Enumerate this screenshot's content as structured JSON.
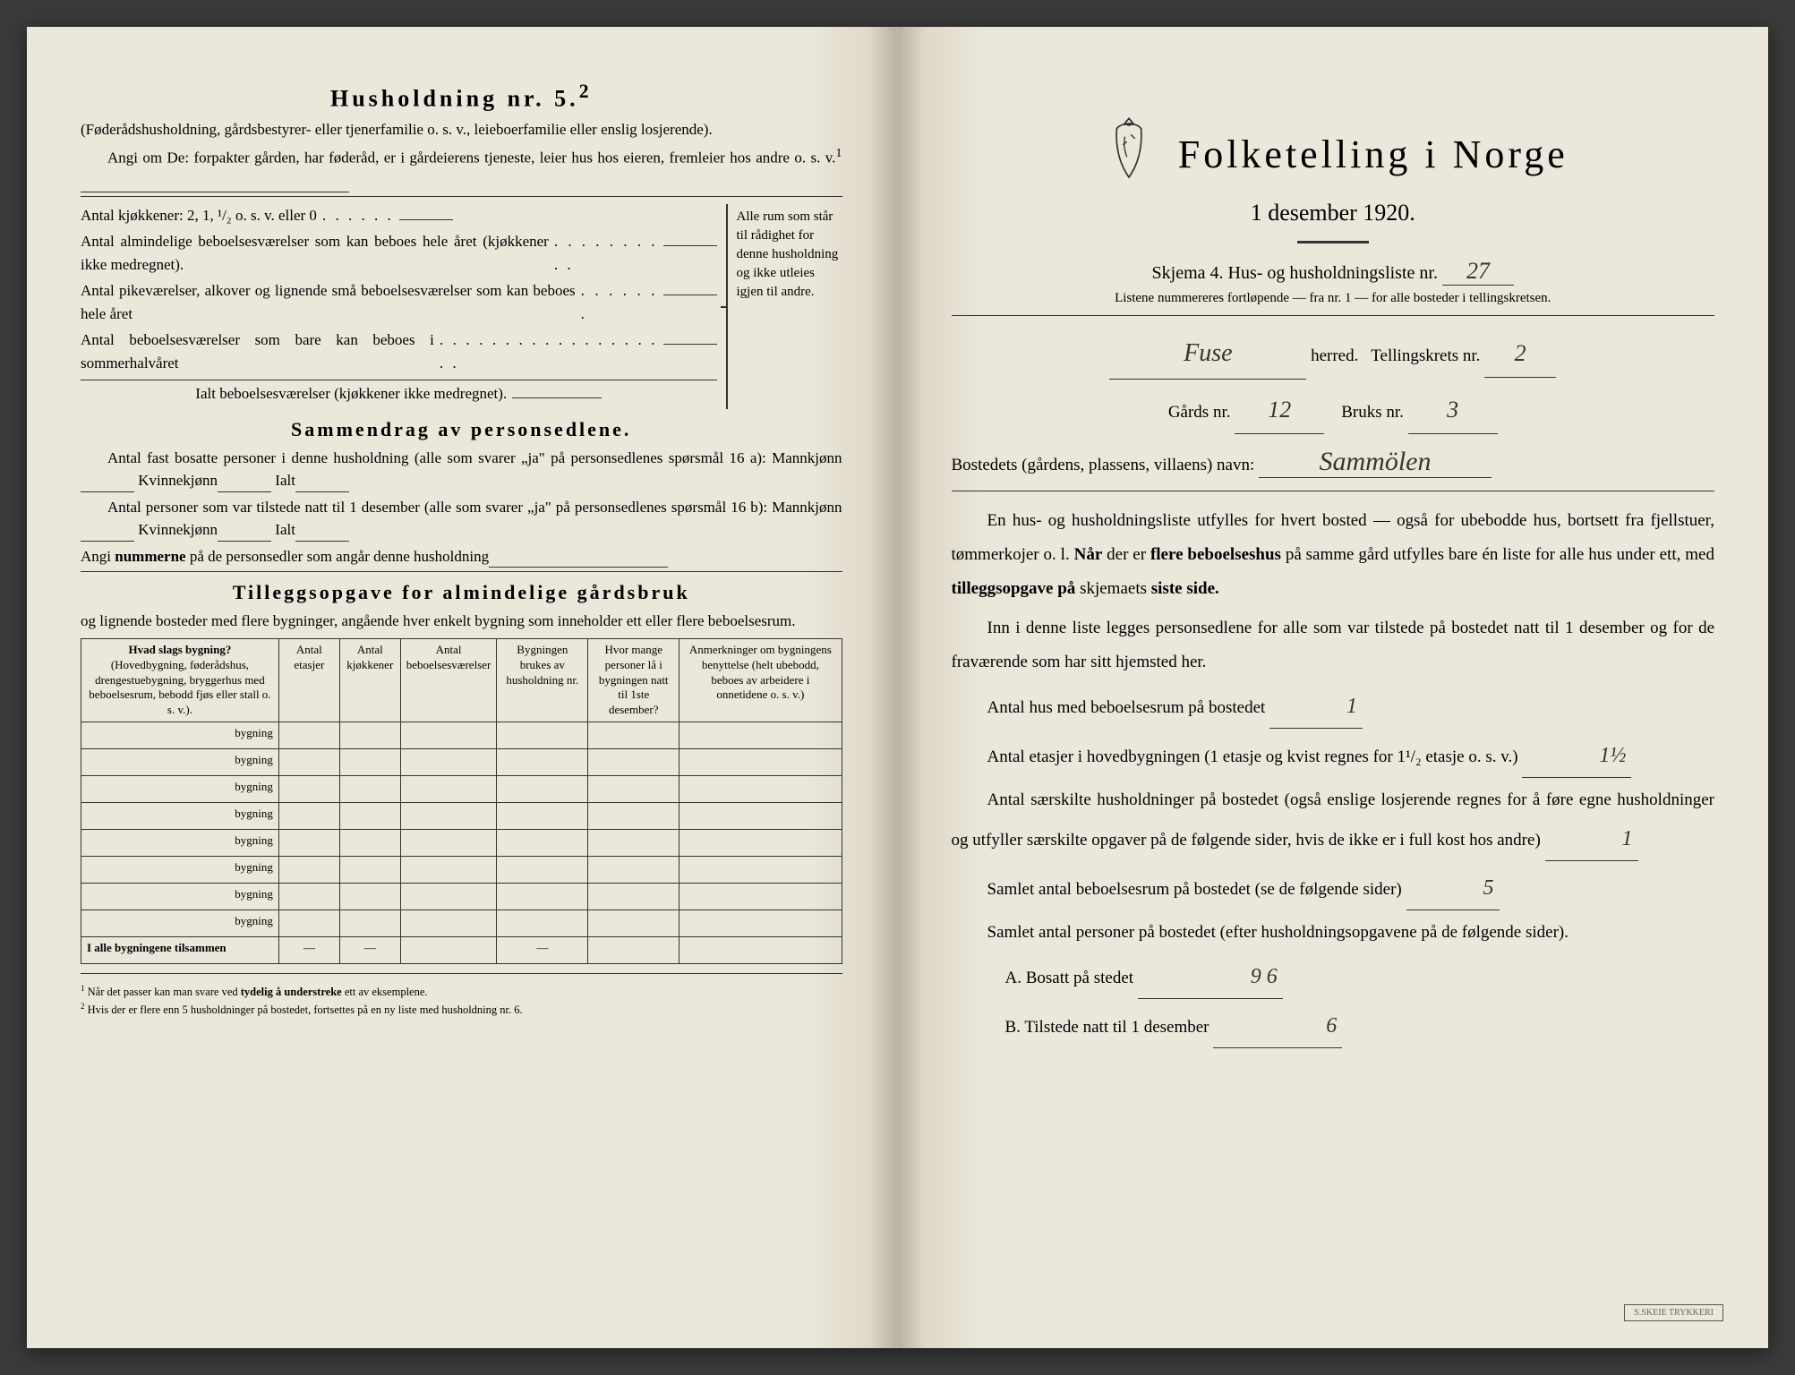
{
  "colors": {
    "paper": "#ebe7db",
    "ink": "#2a2a2a",
    "handwriting": "#3a3528"
  },
  "leftPage": {
    "heading": "Husholdning nr. 5.",
    "headingSup": "2",
    "intro1": "(Føderådshusholdning, gårdsbestyrer- eller tjenerfamilie o. s. v., leieboerfamilie eller enslig losjerende).",
    "intro2": "Angi om De: forpakter gården, har føderåd, er i gårdeierens tjeneste, leier hus hos eieren, fremleier hos andre o. s. v.",
    "intro2Sup": "1",
    "kitchens": "Antal kjøkkener: 2, 1, ¹/₂ o. s. v. eller 0",
    "rooms1": "Antal almindelige beboelsesværelser som kan beboes hele året (kjøkkener ikke medregnet).",
    "rooms2": "Antal pikeværelser, alkover og lignende små beboelsesværelser som kan beboes hele året",
    "rooms3": "Antal beboelsesværelser som bare kan beboes i sommerhalvåret",
    "roomsTotal": "Ialt beboelsesværelser (kjøkkener ikke medregnet).",
    "braceText": "Alle rum som står til rådighet for denne husholdning og ikke utleies igjen til andre.",
    "section2Title": "Sammendrag av personsedlene.",
    "resident1": "Antal fast bosatte personer i denne husholdning (alle som svarer „ja\" på personsedlenes spørsmål 16 a): Mannkjønn",
    "kvinnekjonn": "Kvinnekjønn",
    "ialt": "Ialt",
    "resident2": "Antal personer som var tilstede natt til 1 desember (alle som svarer „ja\" på personsedlenes spørsmål 16 b): Mannkjønn",
    "angiNummerne": "Angi nummerne på de personsedler som angår denne husholdning",
    "section3Title": "Tilleggsopgave for almindelige gårdsbruk",
    "section3Sub": "og lignende bosteder med flere bygninger, angående hver enkelt bygning som inneholder ett eller flere beboelsesrum.",
    "tableHeaders": {
      "col1": "Hvad slags bygning?",
      "col1Sub": "(Hovedbygning, føderådshus, drengestuebygning, bryggerhus med beboelsesrum, bebodd fjøs eller stall o. s. v.).",
      "col2": "Antal etasjer",
      "col3": "Antal kjøkkener",
      "col4": "Antal beboelsesværelser",
      "col5": "Bygningen brukes av husholdning nr.",
      "col6": "Hvor mange personer lå i bygningen natt til 1ste desember?",
      "col7": "Anmerkninger om bygningens benyttelse (helt ubebodd, beboes av arbeidere i onnetidene o. s. v.)"
    },
    "bygningLabel": "bygning",
    "tableFooter": "I alle bygningene tilsammen",
    "footnote1": "Når det passer kan man svare ved tydelig å understreke ett av eksemplene.",
    "footnote2": "Hvis der er flere enn 5 husholdninger på bostedet, fortsettes på en ny liste med husholdning nr. 6."
  },
  "rightPage": {
    "title": "Folketelling i Norge",
    "date": "1 desember 1920.",
    "formLine": "Skjema 4.  Hus- og husholdningsliste nr.",
    "formNumber": "27",
    "listNote": "Listene nummereres fortløpende — fra nr. 1 — for alle bosteder i tellingskretsen.",
    "herredLabel": "herred.",
    "herredValue": "Fuse",
    "tellingskretsLabel": "Tellingskrets nr.",
    "tellingskretsValue": "2",
    "gardsLabel": "Gårds nr.",
    "gardsValue": "12",
    "bruksLabel": "Bruks nr.",
    "bruksValue": "3",
    "bostedLabel": "Bostedets (gårdens, plassens, villaens) navn:",
    "bostedValue": "Sammölen",
    "para1": "En hus- og husholdningsliste utfylles for hvert bosted — også for ubebodde hus, bortsett fra fjellstuer, tømmerkojer o. l. Når der er flere beboelseshus på samme gård utfylles bare én liste for alle hus under ett, med tilleggsopgave på skjemaets siste side.",
    "para2": "Inn i denne liste legges personsedlene for alle som var tilstede på bostedet natt til 1 desember og for de fraværende som har sitt hjemsted her.",
    "q1": "Antal hus med beboelsesrum på bostedet",
    "q1Value": "1",
    "q2a": "Antal etasjer i hovedbygningen (1 etasje og kvist regnes for 1¹/₂ etasje o. s. v.)",
    "q2Value": "1½",
    "q3": "Antal særskilte husholdninger på bostedet (også enslige losjerende regnes for å føre egne husholdninger og utfyller særskilte opgaver på de følgende sider, hvis de ikke er i full kost hos andre)",
    "q3Value": "1",
    "q4": "Samlet antal beboelsesrum på bostedet (se de følgende sider)",
    "q4Value": "5",
    "q5": "Samlet antal personer på bostedet (efter husholdningsopgavene på de følgende sider).",
    "qA": "A.  Bosatt på stedet",
    "qAValue": "9  6",
    "qB": "B.  Tilstede natt til 1 desember",
    "qBValue": "6",
    "stamp": "S.SKEIE TRYKKERI"
  }
}
